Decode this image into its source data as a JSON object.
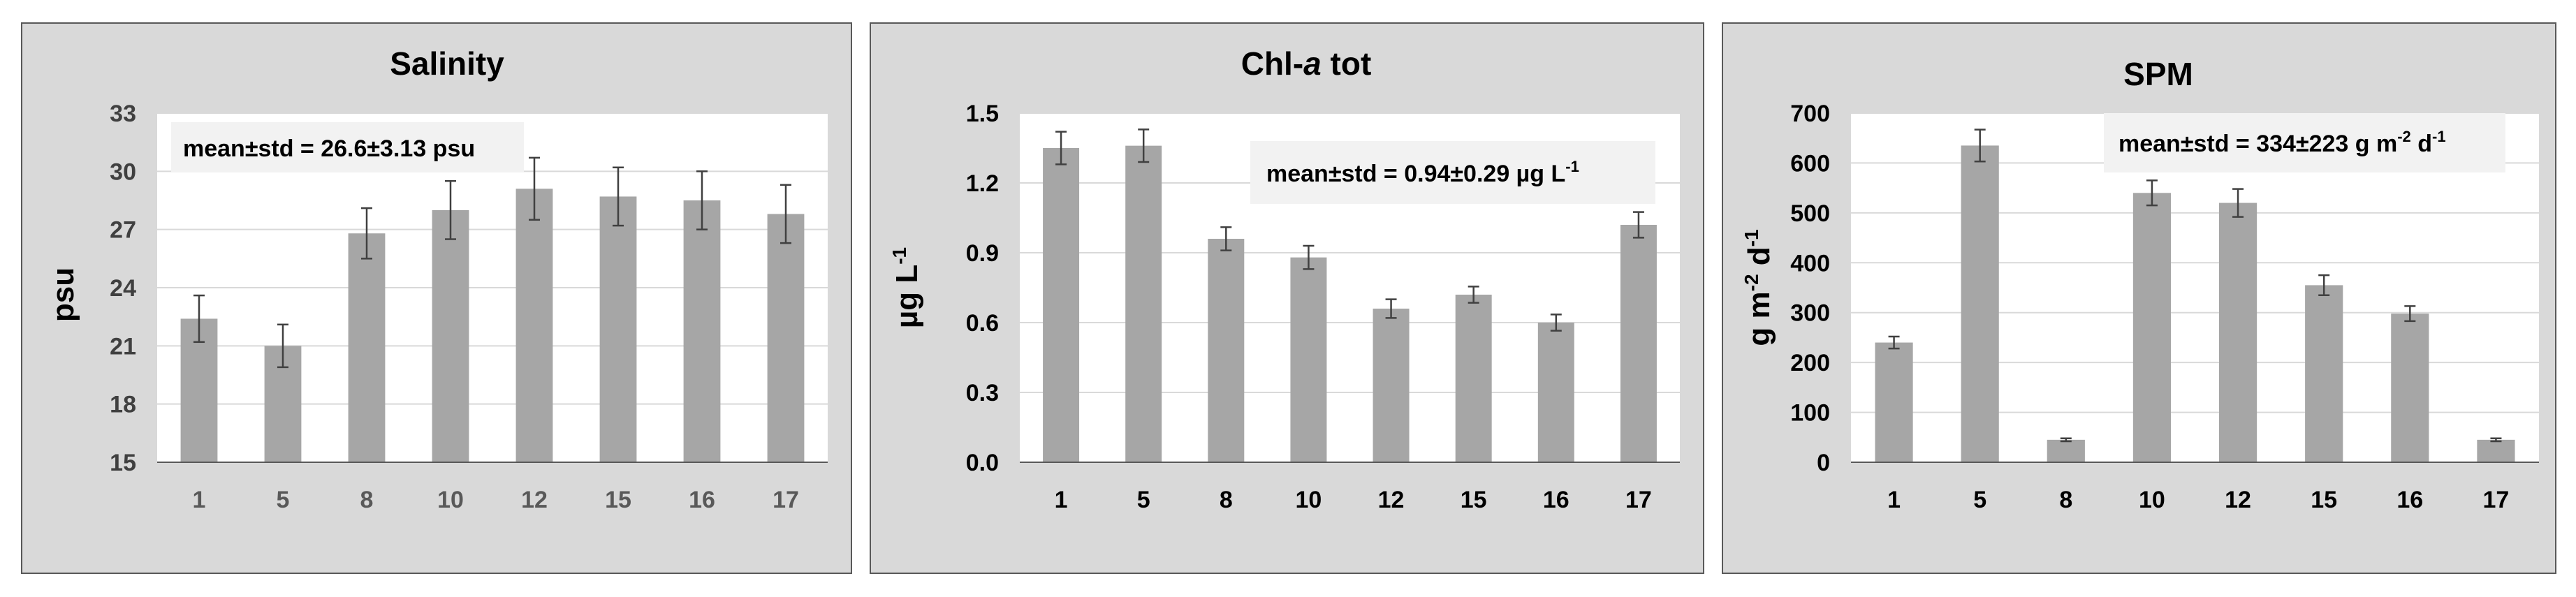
{
  "chart_data": [
    {
      "type": "bar",
      "title": "Salinity",
      "ylabel": "psu",
      "ylim": [
        15,
        33
      ],
      "yticks": [
        "15",
        "18",
        "21",
        "24",
        "27",
        "30",
        "33"
      ],
      "categories": [
        "1",
        "5",
        "8",
        "10",
        "12",
        "15",
        "16",
        "17"
      ],
      "values": [
        22.4,
        21.0,
        26.8,
        28.0,
        29.1,
        28.7,
        28.5,
        27.8
      ],
      "errors": [
        1.2,
        1.1,
        1.3,
        1.5,
        1.6,
        1.5,
        1.5,
        1.5
      ],
      "annotation": "mean±std = 26.6±3.13 psu",
      "grid": true,
      "bar_color": "#a6a6a6"
    },
    {
      "type": "bar",
      "title_main": "Chl-",
      "title_italic": "a",
      "title_rest": " tot",
      "ylabel_main": "µg L",
      "ylabel_sup": "-1",
      "ylim": [
        0.0,
        1.5
      ],
      "yticks": [
        "0.0",
        "0.3",
        "0.6",
        "0.9",
        "1.2",
        "1.5"
      ],
      "categories": [
        "1",
        "5",
        "8",
        "10",
        "12",
        "15",
        "16",
        "17"
      ],
      "values": [
        1.35,
        1.36,
        0.96,
        0.88,
        0.66,
        0.72,
        0.6,
        1.02
      ],
      "errors": [
        0.07,
        0.07,
        0.05,
        0.05,
        0.04,
        0.035,
        0.035,
        0.055
      ],
      "annotation_main": "mean±std = 0.94±0.29 µg L",
      "annotation_sup": "-1",
      "grid": true,
      "bar_color": "#a6a6a6"
    },
    {
      "type": "bar",
      "title": "SPM",
      "ylabel_parts": [
        "g m",
        "-2",
        " d",
        "-1"
      ],
      "ylim": [
        0,
        700
      ],
      "yticks": [
        "0",
        "100",
        "200",
        "300",
        "400",
        "500",
        "600",
        "700"
      ],
      "categories": [
        "1",
        "5",
        "8",
        "10",
        "12",
        "15",
        "16",
        "17"
      ],
      "values": [
        240,
        635,
        45,
        540,
        520,
        355,
        298,
        45
      ],
      "errors": [
        12,
        32,
        3,
        25,
        28,
        20,
        15,
        3
      ],
      "annotation_parts": [
        "mean±std = 334±223 g m",
        "-2",
        " d",
        "-1"
      ],
      "grid": true,
      "bar_color": "#a6a6a6"
    }
  ]
}
